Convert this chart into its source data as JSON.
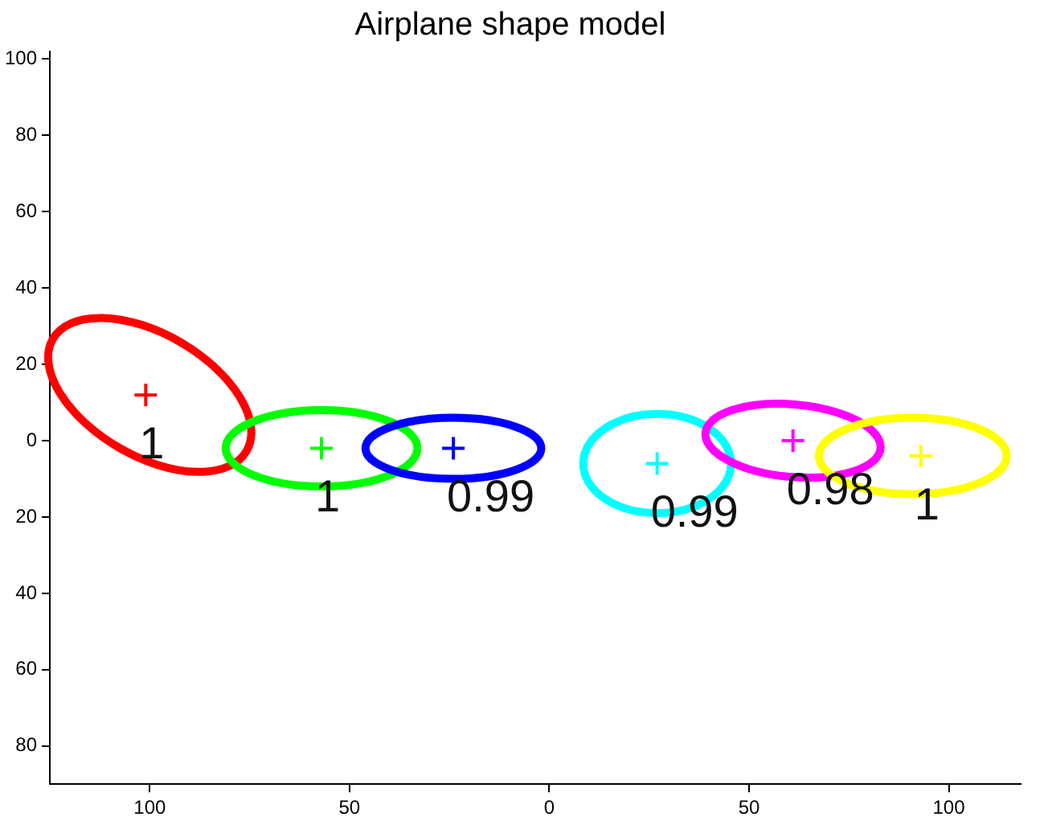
{
  "chart_data": {
    "type": "scatter",
    "title": "Airplane shape model",
    "series": [
      {
        "type": "scatter",
        "marker": "cross",
        "x": [
          -101,
          -57,
          -24,
          27,
          61,
          93
        ],
        "values": [
          12,
          -2,
          -2,
          -6,
          0,
          -4
        ],
        "colors": [
          "#ff0000",
          "#00ff00",
          "#0000ff",
          "#00ffff",
          "#ff00ff",
          "#ffff00"
        ]
      }
    ],
    "grid": false,
    "legend": false,
    "xlim": [
      -125,
      118
    ],
    "xticks": [
      {
        "value": -100,
        "label": "100"
      },
      {
        "value": -50,
        "label": "50"
      },
      0,
      50,
      100
    ],
    "ylim": [
      -90,
      102
    ],
    "yticks": [
      {
        "value": -80,
        "label": "80"
      },
      {
        "value": -60,
        "label": "60"
      },
      {
        "value": -40,
        "label": "40"
      },
      {
        "value": -20,
        "label": "20"
      },
      0,
      20,
      40,
      60,
      80,
      100
    ],
    "annotations": [
      "1",
      "1",
      "0.99",
      "0.99",
      "0.98",
      "1"
    ]
  }
}
